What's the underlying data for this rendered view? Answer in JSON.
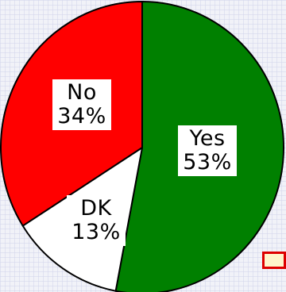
{
  "chart_data": {
    "type": "pie",
    "categories": [
      "Yes",
      "DK",
      "No"
    ],
    "values": [
      53,
      13,
      34
    ],
    "value_labels": [
      "53%",
      "13%",
      "34%"
    ],
    "colors": [
      "#008000",
      "#ffffff",
      "#ff0000"
    ],
    "start_angle_deg": 0,
    "direction": "clockwise",
    "outline_color": "#000000",
    "legend": "none",
    "title": ""
  }
}
